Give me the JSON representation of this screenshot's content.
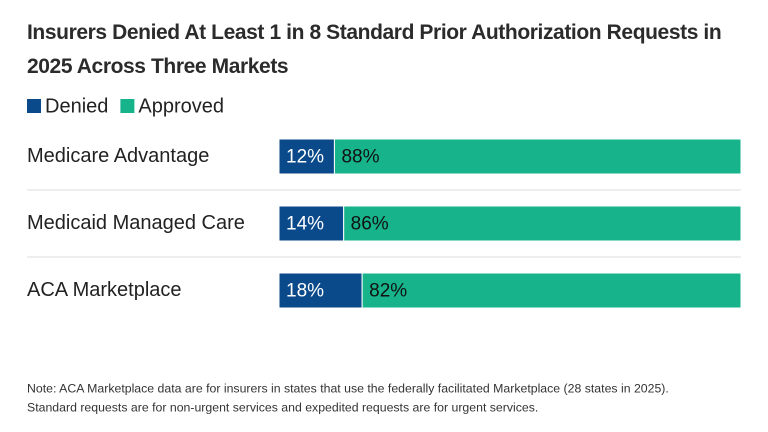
{
  "chart_data": {
    "type": "stacked-bar-horizontal",
    "title": "Insurers Denied At Least 1 in 8 Standard Prior Authorization Requests in 2025 Across Three Markets",
    "categories": [
      "Medicare Advantage",
      "Medicaid Managed Care",
      "ACA Marketplace"
    ],
    "series": [
      {
        "name": "Denied",
        "color": "#0b4a8a",
        "values": [
          12,
          14,
          18
        ],
        "value_labels": [
          "12%",
          "14%",
          "18%"
        ]
      },
      {
        "name": "Approved",
        "color": "#17b48c",
        "values": [
          88,
          86,
          82
        ],
        "value_labels": [
          "88%",
          "86%",
          "82%"
        ]
      }
    ],
    "notes": [
      "Note: ACA Marketplace data are for insurers in states that use the federally facilitated Marketplace (28 states in 2025).",
      "Standard requests are for non-urgent services and expedited requests are for urgent services."
    ]
  }
}
